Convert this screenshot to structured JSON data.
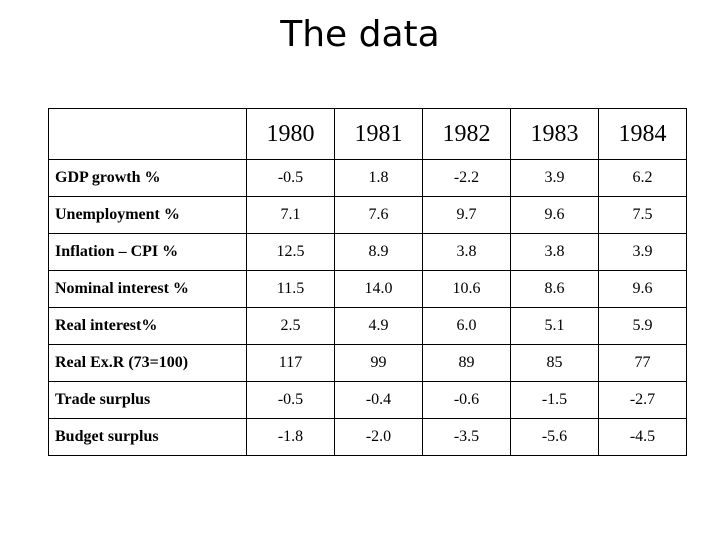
{
  "title": "The data",
  "table": {
    "corner": "",
    "years": [
      "1980",
      "1981",
      "1982",
      "1983",
      "1984"
    ],
    "rows": [
      {
        "label": "GDP growth %",
        "values": [
          "-0.5",
          "1.8",
          "-2.2",
          "3.9",
          "6.2"
        ]
      },
      {
        "label": "Unemployment %",
        "values": [
          "7.1",
          "7.6",
          "9.7",
          "9.6",
          "7.5"
        ]
      },
      {
        "label": "Inflation – CPI %",
        "values": [
          "12.5",
          "8.9",
          "3.8",
          "3.8",
          "3.9"
        ]
      },
      {
        "label": "Nominal interest %",
        "values": [
          "11.5",
          "14.0",
          "10.6",
          "8.6",
          "9.6"
        ]
      },
      {
        "label": "Real interest%",
        "values": [
          "2.5",
          "4.9",
          "6.0",
          "5.1",
          "5.9"
        ]
      },
      {
        "label": "Real Ex.R (73=100)",
        "values": [
          "117",
          "99",
          "89",
          "85",
          "77"
        ]
      },
      {
        "label": "Trade surplus",
        "values": [
          "-0.5",
          "-0.4",
          "-0.6",
          "-1.5",
          "-2.7"
        ]
      },
      {
        "label": "Budget surplus",
        "values": [
          "-1.8",
          "-2.0",
          "-3.5",
          "-5.6",
          "-4.5"
        ]
      }
    ]
  }
}
